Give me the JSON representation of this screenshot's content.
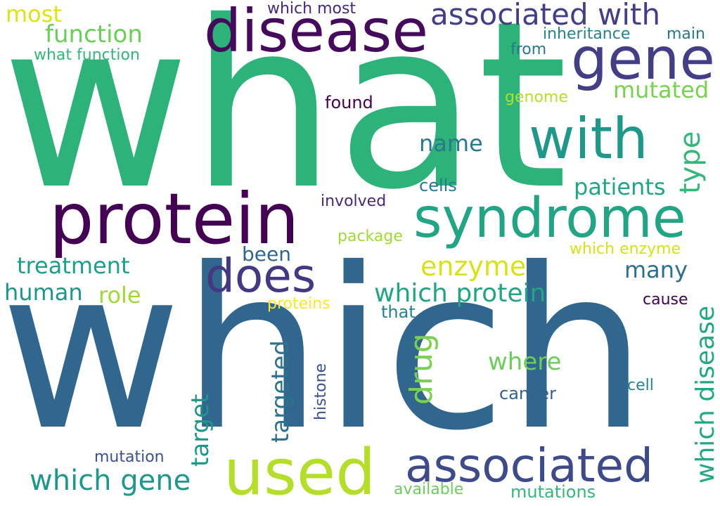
{
  "words": {
    "what": {
      "text": "what",
      "color": "#2db37a"
    },
    "which": {
      "text": "which",
      "color": "#31668e"
    },
    "disease": {
      "text": "disease",
      "color": "#460a5d"
    },
    "gene": {
      "text": "gene",
      "color": "#433e86"
    },
    "with": {
      "text": "with",
      "color": "#1f978b"
    },
    "protein": {
      "text": "protein",
      "color": "#440154"
    },
    "syndrome": {
      "text": "syndrome",
      "color": "#21a585"
    },
    "does": {
      "text": "does",
      "color": "#453781"
    },
    "used": {
      "text": "used",
      "color": "#b5de2b"
    },
    "associated": {
      "text": "associated",
      "color": "#3e4a89"
    },
    "associated_with": {
      "text": "associated with",
      "color": "#433e86"
    },
    "function": {
      "text": "function",
      "color": "#6ccd5a"
    },
    "most": {
      "text": "most",
      "color": "#dde318"
    },
    "which_most": {
      "text": "which most",
      "color": "#482878"
    },
    "inheritance": {
      "text": "inheritance",
      "color": "#26828e"
    },
    "main": {
      "text": "main",
      "color": "#2a788e"
    },
    "what_function": {
      "text": "what function",
      "color": "#35b779"
    },
    "from": {
      "text": "from",
      "color": "#2a788e"
    },
    "mutated": {
      "text": "mutated",
      "color": "#7ad151"
    },
    "genome": {
      "text": "genome",
      "color": "#b5de2b"
    },
    "found": {
      "text": "found",
      "color": "#440154"
    },
    "type": {
      "text": "type",
      "color": "#35b779"
    },
    "name": {
      "text": "name",
      "color": "#2a788e"
    },
    "patients": {
      "text": "patients",
      "color": "#21a585"
    },
    "cells": {
      "text": "cells",
      "color": "#2a788e"
    },
    "involved": {
      "text": "involved",
      "color": "#482878"
    },
    "package": {
      "text": "package",
      "color": "#a0da39"
    },
    "which_enzyme": {
      "text": "which enzyme",
      "color": "#d8e219"
    },
    "enzyme": {
      "text": "enzyme",
      "color": "#d8e219"
    },
    "been": {
      "text": "been",
      "color": "#31668e"
    },
    "treatment": {
      "text": "treatment",
      "color": "#1f9e89"
    },
    "many": {
      "text": "many",
      "color": "#2e6f8e"
    },
    "human": {
      "text": "human",
      "color": "#1f968b"
    },
    "role": {
      "text": "role",
      "color": "#a0da39"
    },
    "which_protein": {
      "text": "which protein",
      "color": "#21a585"
    },
    "proteins": {
      "text": "proteins",
      "color": "#fde725"
    },
    "that": {
      "text": "that",
      "color": "#26828e"
    },
    "cause": {
      "text": "cause",
      "color": "#440154"
    },
    "which_disease": {
      "text": "which disease",
      "color": "#22a884"
    },
    "drug": {
      "text": "drug",
      "color": "#7ad151"
    },
    "where": {
      "text": "where",
      "color": "#6ccd5a"
    },
    "targeted": {
      "text": "targeted",
      "color": "#2c728e"
    },
    "target": {
      "text": "target",
      "color": "#1f968b"
    },
    "histone": {
      "text": "histone",
      "color": "#3b528b"
    },
    "cancer": {
      "text": "cancer",
      "color": "#355f8d"
    },
    "cell": {
      "text": "cell",
      "color": "#25858e"
    },
    "which_gene": {
      "text": "which gene",
      "color": "#1f978b"
    },
    "mutation": {
      "text": "mutation",
      "color": "#3b528b"
    },
    "available": {
      "text": "available",
      "color": "#6ccd5a"
    },
    "mutations": {
      "text": "mutations",
      "color": "#35b779"
    }
  }
}
